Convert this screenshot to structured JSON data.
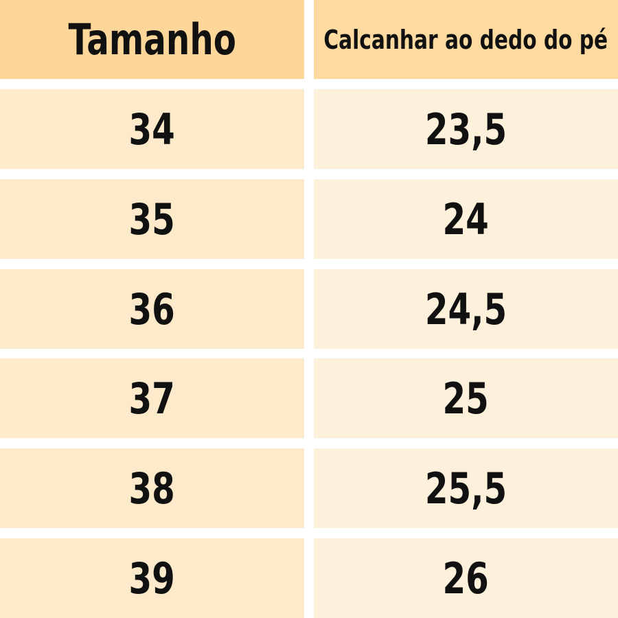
{
  "table": {
    "header": [
      "Tamanho",
      "Calcanhar ao dedo do pé"
    ],
    "rows": [
      [
        "34",
        "23,5"
      ],
      [
        "35",
        "24"
      ],
      [
        "36",
        "24,5"
      ],
      [
        "37",
        "25"
      ],
      [
        "38",
        "25,5"
      ],
      [
        "39",
        "26"
      ]
    ]
  }
}
